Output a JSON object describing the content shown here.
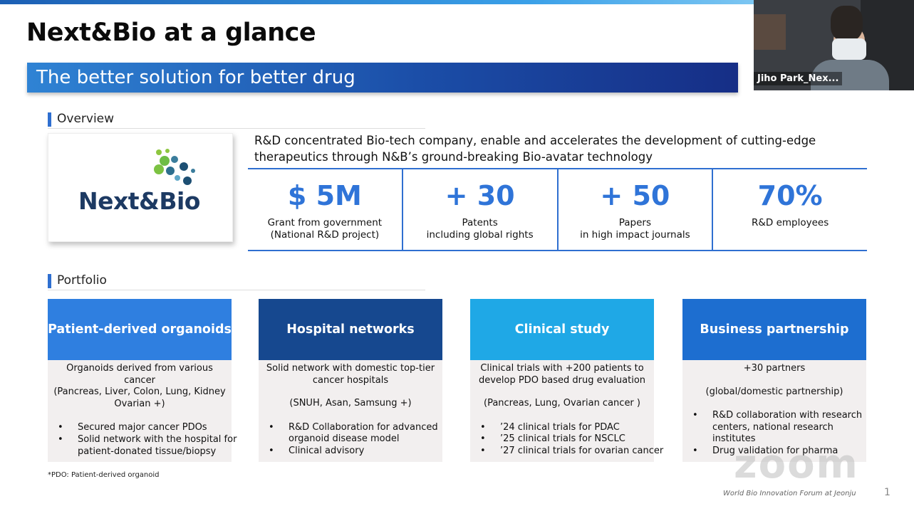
{
  "slide": {
    "title": "Next&Bio at a glance",
    "banner": "The better solution for better drug",
    "overview_heading": "Overview",
    "logo_text": "Next&Bio",
    "description": [
      "R&D concentrated Bio-tech company, enable and accelerates the development of cutting-edge",
      "therapeutics through N&B’s ground-breaking Bio-avatar technology"
    ],
    "stats": [
      {
        "value": "$ 5M",
        "line1": "Grant from government",
        "line2": "(National R&D project)"
      },
      {
        "value": "+ 30",
        "line1": "Patents",
        "line2": "including global rights"
      },
      {
        "value": "+ 50",
        "line1": "Papers",
        "line2": "in high impact journals"
      },
      {
        "value": "70%",
        "line1": "R&D employees",
        "line2": ""
      }
    ],
    "portfolio_heading": "Portfolio",
    "cards": [
      {
        "title": "Patient-derived organoids",
        "color": "#2f7fe0",
        "center_lines": [
          "Organoids derived from various",
          "cancer",
          "(Pancreas, Liver, Colon, Lung, Kidney",
          "Ovarian +)"
        ],
        "bullets": [
          "Secured major cancer PDOs",
          "Solid network with the hospital for",
          "patient-donated tissue/biopsy"
        ]
      },
      {
        "title": "Hospital networks",
        "color": "#16488f",
        "center_lines": [
          "Solid network with domestic top-tier",
          "cancer hospitals",
          "",
          "(SNUH, Asan, Samsung +)"
        ],
        "bullets": [
          "R&D Collaboration for advanced",
          "organoid disease model",
          "Clinical advisory"
        ]
      },
      {
        "title": "Clinical study",
        "color": "#1fa8e6",
        "center_lines": [
          "Clinical trials with +200 patients to",
          "develop PDO based drug evaluation",
          "",
          "(Pancreas, Lung, Ovarian cancer )"
        ],
        "bullets": [
          "’24 clinical trials for PDAC",
          "’25 clinical trials for NSCLC",
          "’27 clinical trials for ovarian cancer"
        ]
      },
      {
        "title": "Business partnership",
        "color": "#1d6ed0",
        "center_lines": [
          "+30 partners",
          "",
          "(global/domestic partnership)"
        ],
        "bullets": [
          "R&D collaboration with research",
          "centers, national research",
          "institutes",
          "Drug validation for pharma"
        ]
      }
    ],
    "footnote": "*PDO: Patient-derived organoid",
    "forum": "World Bio Innovation Forum at Jeonju",
    "page_number": "1"
  },
  "video": {
    "participant_name": "Jiho Park_Nex..."
  },
  "watermark": "zoom"
}
